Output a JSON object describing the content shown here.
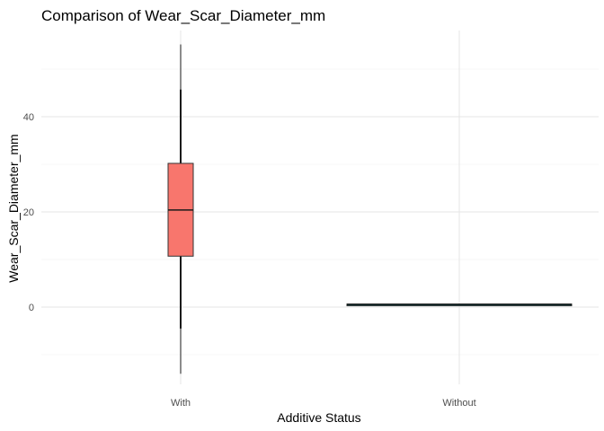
{
  "chart_data": {
    "type": "boxplot",
    "title": "Comparison of Wear_Scar_Diameter_mm",
    "xlabel": "Additive Status",
    "ylabel": "Wear_Scar_Diameter_mm",
    "ylim": [
      -14.5,
      57
    ],
    "y_ticks": [
      0,
      20,
      40
    ],
    "y_minor_ticks": [
      -10,
      10,
      30,
      50
    ],
    "grid": true,
    "legend": "none",
    "categories": [
      "With",
      "Without"
    ],
    "boxes": [
      {
        "category": "With",
        "color": "#F8766D",
        "min": -14,
        "q1": 10.7,
        "median": 20.4,
        "q3": 30.2,
        "max": 55.2,
        "whisker_low": -4.5,
        "whisker_high": 45.7
      },
      {
        "category": "Without",
        "color": "#00BFC4",
        "min": 0.4,
        "q1": 0.45,
        "median": 0.55,
        "q3": 0.65,
        "max": 0.7,
        "whisker_low": 0.4,
        "whisker_high": 0.7
      }
    ]
  }
}
